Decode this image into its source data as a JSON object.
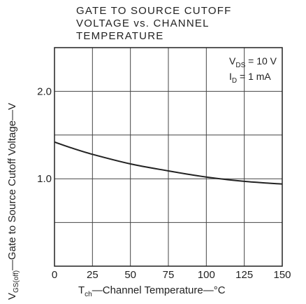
{
  "chart_data": {
    "type": "line",
    "title": [
      "GATE TO SOURCE CUTOFF",
      "VOLTAGE vs. CHANNEL",
      "TEMPERATURE"
    ],
    "xlabel": {
      "main": "T",
      "sub": "ch",
      "rest": "—Channel Temperature—°C"
    },
    "ylabel": {
      "main": "V",
      "sub": "GS(off)",
      "rest": "—Gate to Source Cutoff Voltage—V"
    },
    "xlim": [
      0,
      150
    ],
    "ylim": [
      0,
      2.5
    ],
    "x_ticks": [
      {
        "value": 0,
        "label": "0"
      },
      {
        "value": 25,
        "label": "25"
      },
      {
        "value": 50,
        "label": "50"
      },
      {
        "value": 75,
        "label": "75"
      },
      {
        "value": 100,
        "label": "100"
      },
      {
        "value": 125,
        "label": "125"
      },
      {
        "value": 150,
        "label": "150"
      }
    ],
    "y_ticks": [
      {
        "value": 1.0,
        "label": "1.0"
      },
      {
        "value": 2.0,
        "label": "2.0"
      }
    ],
    "x_grid": [
      25,
      50,
      75,
      100,
      125,
      150
    ],
    "y_grid": [
      0.5,
      1.0,
      1.5,
      2.0
    ],
    "conditions": [
      {
        "main": "V",
        "sub": "DS",
        "rest": " = 10 V"
      },
      {
        "main": "I",
        "sub": "D",
        "rest": " = 1 mA"
      }
    ],
    "series": [
      {
        "x": [
          0,
          10,
          25,
          50,
          75,
          100,
          125,
          150
        ],
        "y": [
          1.42,
          1.36,
          1.28,
          1.17,
          1.09,
          1.02,
          0.97,
          0.94
        ]
      }
    ]
  }
}
